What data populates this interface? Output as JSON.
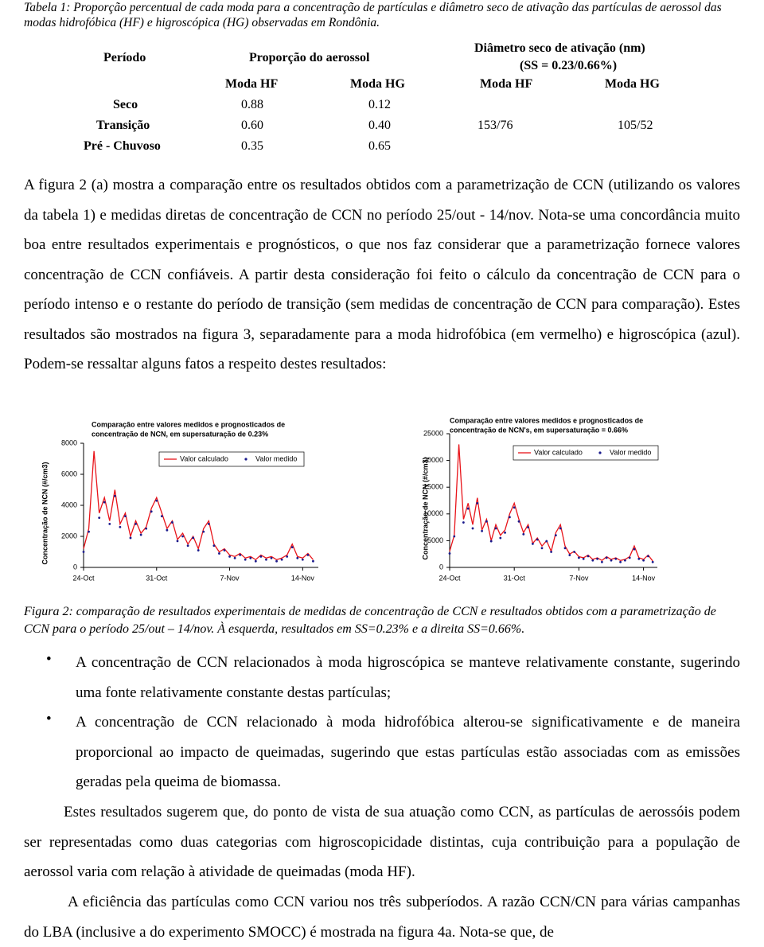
{
  "table": {
    "caption": "Tabela 1: Proporção percentual de cada moda para a concentração de partículas e diâmetro seco de ativação das partículas de aerossol das modas hidrofóbica (HF) e higroscópica (HG) observadas em Rondônia.",
    "header": {
      "period": "Período",
      "proportion": "Proporção do aerossol",
      "diameter": [
        "Diâmetro seco de ativação (nm)",
        "(SS = 0.23/0.66%)"
      ]
    },
    "subheaders": [
      "Moda HF",
      "Moda HG",
      "Moda HF",
      "Moda HG"
    ],
    "rows": [
      [
        "Seco",
        "0.88",
        "0.12"
      ],
      [
        "Transição",
        "0.60",
        "0.40"
      ],
      [
        "Pré - Chuvoso",
        "0.35",
        "0.65"
      ]
    ],
    "diameters": [
      "153/76",
      "105/52"
    ]
  },
  "paragraphs": [
    "A figura 2 (a) mostra a comparação entre os resultados obtidos com a parametrização de CCN (utilizando os valores da tabela 1) e medidas diretas de concentração de CCN no período 25/out - 14/nov. Nota-se uma concordância muito boa entre resultados experimentais e prognósticos, o que nos faz considerar que a parametrização fornece valores concentração de CCN confiáveis. A partir desta consideração foi feito o cálculo da concentração de CCN para o período intenso e o restante do período de transição (sem medidas de concentração de CCN para comparação). Estes resultados são mostrados na figura 3, separadamente para a moda hidrofóbica (em vermelho) e higroscópica (azul). Podem-se ressaltar alguns fatos a respeito destes resultados:"
  ],
  "figure_caption": "Figura 2: comparação de resultados experimentais de medidas de concentração de CCN e resultados obtidos com a parametrização de CCN para o período 25/out – 14/nov. À esquerda, resultados em SS=0.23% e a direita SS=0.66%.",
  "bullets": [
    "A concentração de CCN relacionados à moda higroscópica se manteve relativamente constante, sugerindo uma fonte relativamente constante destas partículas;",
    "A concentração de CCN relacionado à moda hidrofóbica alterou-se significativamente e de maneira proporcional ao impacto de queimadas, sugerindo que estas partículas estão associadas com as emissões geradas pela queima de biomassa."
  ],
  "closing": [
    "Estes resultados sugerem que, do ponto de vista de sua atuação como CCN, as partículas de aerossóis podem ser representadas como duas categorias com higroscopicidade distintas, cuja contribuição para a população de aerossol varia com relação à atividade de queimadas (moda HF).",
    "A eficiência das partículas como CCN variou nos três subperíodos. A razão CCN/CN para várias campanhas do LBA (inclusive a do experimento SMOCC) é mostrada na figura 4a. Nota-se que, de"
  ],
  "chart_data": [
    {
      "type": "line",
      "title": [
        "Comparação entre valores medidos e prognosticados de",
        "concentração de NCN, em supersaturação de 0.23%"
      ],
      "y_label": "Concentração de NCN (#/cm3)",
      "x": [
        0,
        0.5,
        1,
        1.5,
        2,
        2.5,
        3,
        3.5,
        4,
        4.5,
        5,
        5.5,
        6,
        6.5,
        7,
        7.5,
        8,
        8.5,
        9,
        9.5,
        10,
        10.5,
        11,
        11.5,
        12,
        12.5,
        13,
        13.5,
        14,
        14.5,
        15,
        15.5,
        16,
        16.5,
        17,
        17.5,
        18,
        18.5,
        19,
        19.5,
        20,
        20.5,
        21,
        21.5,
        22
      ],
      "xlim": [
        0,
        22.5
      ],
      "xticks": [
        {
          "value": 0,
          "label": "24-Oct"
        },
        {
          "value": 7,
          "label": "31-Oct"
        },
        {
          "value": 14,
          "label": "7-Nov"
        },
        {
          "value": 21,
          "label": "14-Nov"
        }
      ],
      "ylim": [
        0,
        8000
      ],
      "yticks": [
        0,
        2000,
        4000,
        6000,
        8000
      ],
      "series": [
        {
          "name": "Valor calculado",
          "color": "#e8141a",
          "mode": "line",
          "values": [
            1200,
            2500,
            7500,
            3500,
            4500,
            3000,
            5000,
            2800,
            3500,
            2000,
            3000,
            2200,
            2600,
            3800,
            4500,
            3500,
            2500,
            3000,
            1800,
            2200,
            1500,
            2000,
            1200,
            2500,
            3000,
            1500,
            1000,
            1200,
            800,
            700,
            900,
            600,
            700,
            500,
            800,
            600,
            700,
            500,
            600,
            800,
            1500,
            700,
            600,
            900,
            500
          ]
        },
        {
          "name": "Valor medido",
          "color": "#1a1a8c",
          "mode": "markers",
          "values": [
            1000,
            2300,
            null,
            3200,
            4200,
            2800,
            4600,
            2600,
            3300,
            1900,
            2800,
            2100,
            2500,
            3600,
            4300,
            3300,
            2400,
            2900,
            1700,
            2000,
            1400,
            1900,
            1100,
            2300,
            2800,
            1400,
            900,
            1100,
            700,
            600,
            800,
            500,
            600,
            400,
            700,
            500,
            600,
            400,
            500,
            700,
            1300,
            600,
            500,
            800,
            400
          ]
        }
      ]
    },
    {
      "type": "line",
      "title": [
        "Comparação entre valores medidos e prognosticados de",
        "concentração de NCN's, em supersaturação = 0.66%"
      ],
      "y_label": "Concentração de NCN (#/cm3)",
      "x": [
        0,
        0.5,
        1,
        1.5,
        2,
        2.5,
        3,
        3.5,
        4,
        4.5,
        5,
        5.5,
        6,
        6.5,
        7,
        7.5,
        8,
        8.5,
        9,
        9.5,
        10,
        10.5,
        11,
        11.5,
        12,
        12.5,
        13,
        13.5,
        14,
        14.5,
        15,
        15.5,
        16,
        16.5,
        17,
        17.5,
        18,
        18.5,
        19,
        19.5,
        20,
        20.5,
        21,
        21.5,
        22
      ],
      "xlim": [
        0,
        22.5
      ],
      "xticks": [
        {
          "value": 0,
          "label": "24-Oct"
        },
        {
          "value": 7,
          "label": "31-Oct"
        },
        {
          "value": 14,
          "label": "7-Nov"
        },
        {
          "value": 21,
          "label": "14-Nov"
        }
      ],
      "ylim": [
        0,
        25000
      ],
      "yticks": [
        0,
        5000,
        10000,
        15000,
        20000,
        25000
      ],
      "series": [
        {
          "name": "Valor calculado",
          "color": "#e8141a",
          "mode": "line",
          "values": [
            3000,
            6000,
            23000,
            9000,
            12000,
            8000,
            13000,
            7000,
            9000,
            5000,
            8000,
            6000,
            7000,
            10000,
            12000,
            9000,
            6500,
            8000,
            4500,
            5500,
            4000,
            5000,
            3000,
            6500,
            8000,
            4000,
            2500,
            3000,
            2000,
            1800,
            2300,
            1500,
            1800,
            1300,
            2000,
            1500,
            1800,
            1300,
            1500,
            2000,
            4000,
            1800,
            1500,
            2300,
            1200
          ]
        },
        {
          "name": "Valor medido",
          "color": "#1a1a8c",
          "mode": "markers",
          "values": [
            2600,
            5800,
            null,
            8400,
            11000,
            7300,
            12000,
            6800,
            8600,
            4900,
            7300,
            5500,
            6500,
            9400,
            11200,
            8600,
            6200,
            7500,
            4400,
            5200,
            3600,
            4900,
            2900,
            6000,
            7300,
            3600,
            2300,
            2900,
            1800,
            1600,
            2100,
            1300,
            1600,
            1000,
            1800,
            1300,
            1600,
            1000,
            1300,
            1800,
            3400,
            1600,
            1300,
            2100,
            1000
          ]
        }
      ]
    }
  ]
}
